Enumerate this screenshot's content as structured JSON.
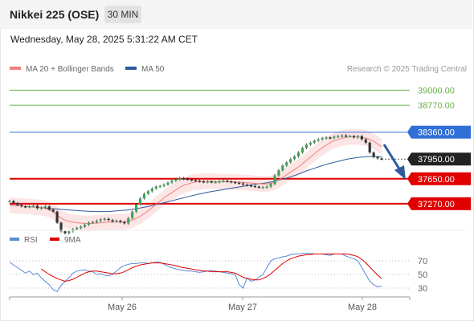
{
  "header": {
    "title": "Nikkei 225 (OSE)",
    "timeframe": "30 MIN"
  },
  "datetime": "Wednesday, May 28, 2025 5:31:22 AM CET",
  "legend": {
    "ma_label": "MA 20 + Bollinger Bands",
    "ma50_label": "MA 50",
    "rsi_label": "RSI",
    "ma9_label": "9MA",
    "colors": {
      "ma20": "#f08080",
      "ma50": "#2e5b9c",
      "rsi": "#5b8ad6",
      "ma9": "#e00000"
    }
  },
  "credit": "Research © 2025 Trading Central",
  "chart_data": {
    "type": "candlestick",
    "x_labels": [
      "May 26",
      "May 27",
      "May 28"
    ],
    "price_range": [
      36950,
      39200
    ],
    "levels": [
      {
        "label": "39000.00",
        "value": 39000,
        "kind": "resistance",
        "color": "#6ab04c"
      },
      {
        "label": "38770.00",
        "value": 38770,
        "kind": "resistance",
        "color": "#6ab04c"
      },
      {
        "label": "38360.00",
        "value": 38360,
        "kind": "pivot",
        "color": "#2f6fd6"
      },
      {
        "label": "37950.00",
        "value": 37950,
        "kind": "last",
        "color": "#222222"
      },
      {
        "label": "37650.00",
        "value": 37650,
        "kind": "support",
        "color": "#e00000"
      },
      {
        "label": "37270.00",
        "value": 37270,
        "kind": "support",
        "color": "#e00000"
      }
    ],
    "price": [
      37310,
      37280,
      37250,
      37230,
      37220,
      37230,
      37240,
      37200,
      37210,
      37230,
      37180,
      37150,
      36980,
      36850,
      36820,
      36850,
      36880,
      36900,
      36920,
      36950,
      36980,
      36990,
      37010,
      37030,
      37040,
      37020,
      37000,
      37010,
      36990,
      36970,
      37050,
      37150,
      37260,
      37350,
      37420,
      37460,
      37500,
      37530,
      37540,
      37560,
      37590,
      37620,
      37640,
      37660,
      37650,
      37640,
      37630,
      37620,
      37610,
      37600,
      37610,
      37600,
      37600,
      37610,
      37620,
      37610,
      37600,
      37590,
      37580,
      37560,
      37550,
      37540,
      37530,
      37520,
      37520,
      37530,
      37570,
      37700,
      37780,
      37850,
      37900,
      37950,
      37990,
      38050,
      38120,
      38170,
      38200,
      38230,
      38250,
      38270,
      38280,
      38270,
      38290,
      38300,
      38310,
      38300,
      38300,
      38280,
      38300,
      38250,
      38200,
      38050,
      37980,
      37960,
      37950
    ],
    "ma20": [
      37250,
      37245,
      37240,
      37235,
      37230,
      37225,
      37220,
      37215,
      37210,
      37200,
      37180,
      37150,
      37100,
      37050,
      37020,
      37000,
      36990,
      36980,
      36975,
      36970,
      36970,
      36972,
      36975,
      36980,
      36985,
      36990,
      36990,
      36995,
      36995,
      36995,
      37005,
      37020,
      37050,
      37080,
      37120,
      37160,
      37210,
      37260,
      37310,
      37360,
      37400,
      37440,
      37480,
      37520,
      37550,
      37570,
      37590,
      37600,
      37605,
      37610,
      37610,
      37610,
      37605,
      37605,
      37605,
      37605,
      37600,
      37600,
      37598,
      37595,
      37590,
      37585,
      37580,
      37575,
      37570,
      37570,
      37580,
      37600,
      37630,
      37670,
      37710,
      37750,
      37790,
      37830,
      37880,
      37930,
      37980,
      38030,
      38080,
      38120,
      38160,
      38200,
      38230,
      38250,
      38270,
      38280,
      38290,
      38290,
      38290,
      38280,
      38270,
      38250,
      38220,
      38180,
      38140
    ],
    "ma50": [
      37250,
      37245,
      37240,
      37235,
      37230,
      37225,
      37220,
      37215,
      37210,
      37205,
      37200,
      37195,
      37190,
      37185,
      37180,
      37175,
      37170,
      37165,
      37162,
      37158,
      37155,
      37152,
      37150,
      37150,
      37150,
      37152,
      37155,
      37160,
      37165,
      37170,
      37175,
      37185,
      37195,
      37205,
      37215,
      37228,
      37240,
      37255,
      37270,
      37285,
      37300,
      37315,
      37330,
      37345,
      37360,
      37375,
      37390,
      37405,
      37420,
      37430,
      37445,
      37455,
      37465,
      37475,
      37485,
      37495,
      37505,
      37515,
      37525,
      37535,
      37545,
      37555,
      37565,
      37575,
      37580,
      37590,
      37600,
      37615,
      37630,
      37645,
      37660,
      37680,
      37700,
      37720,
      37745,
      37770,
      37790,
      37810,
      37830,
      37850,
      37870,
      37885,
      37900,
      37915,
      37930,
      37945,
      37955,
      37965,
      37975,
      37980,
      37985,
      37990,
      37990,
      37990,
      37985
    ],
    "rsi": [
      68,
      64,
      60,
      56,
      52,
      55,
      50,
      52,
      45,
      40,
      35,
      28,
      25,
      34,
      40,
      45,
      52,
      55,
      56,
      57,
      55,
      54,
      50,
      51,
      49,
      48,
      50,
      55,
      60,
      63,
      65,
      66,
      66,
      67,
      67,
      66,
      67,
      68,
      68,
      65,
      62,
      60,
      58,
      57,
      56,
      55,
      55,
      54,
      53,
      54,
      55,
      56,
      55,
      54,
      53,
      52,
      51,
      50,
      35,
      30,
      45,
      40,
      42,
      46,
      50,
      60,
      70,
      73,
      74,
      76,
      77,
      79,
      80,
      80,
      81,
      81,
      81,
      80,
      80,
      80,
      79,
      78,
      80,
      80,
      80,
      77,
      75,
      73,
      70,
      60,
      50,
      40,
      35,
      32,
      33
    ],
    "ma9": [
      null,
      null,
      null,
      null,
      null,
      null,
      null,
      null,
      58,
      54,
      50,
      47,
      44,
      42,
      40,
      41,
      43,
      46,
      49,
      52,
      54,
      55,
      55,
      54,
      53,
      52,
      51,
      51,
      52,
      54,
      57,
      60,
      62,
      64,
      65,
      66,
      67,
      67,
      67,
      66,
      65,
      64,
      63,
      61,
      60,
      59,
      58,
      57,
      56,
      55,
      55,
      54,
      54,
      54,
      54,
      54,
      53,
      52,
      49,
      46,
      44,
      43,
      42,
      42,
      44,
      47,
      51,
      56,
      61,
      66,
      70,
      73,
      75,
      77,
      78,
      79,
      79,
      80,
      80,
      80,
      80,
      80,
      80,
      80,
      80,
      80,
      79,
      78,
      76,
      72,
      67,
      61,
      55,
      49,
      44
    ],
    "rsi_levels": [
      70,
      50,
      30
    ]
  }
}
